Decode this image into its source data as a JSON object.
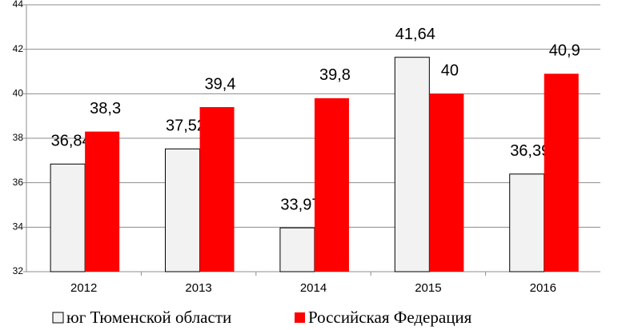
{
  "chart_data": {
    "type": "bar",
    "categories": [
      "2012",
      "2013",
      "2014",
      "2015",
      "2016"
    ],
    "series": [
      {
        "name": "юг Тюменской области",
        "color": "#f2f2f2",
        "values": [
          36.84,
          37.52,
          33.97,
          41.64,
          36.39
        ],
        "value_labels": [
          "36,84",
          "37,52",
          "33,97",
          "41,64",
          "36,39"
        ]
      },
      {
        "name": "Российская Федерация",
        "color": "#ff0000",
        "values": [
          38.3,
          39.4,
          39.8,
          40,
          40.9
        ],
        "value_labels": [
          "38,3",
          "39,4",
          "39,8",
          "40",
          "40,9"
        ]
      }
    ],
    "ylim": [
      32,
      44
    ],
    "yticks": [
      32,
      34,
      36,
      38,
      40,
      42,
      44
    ],
    "grid": true
  }
}
